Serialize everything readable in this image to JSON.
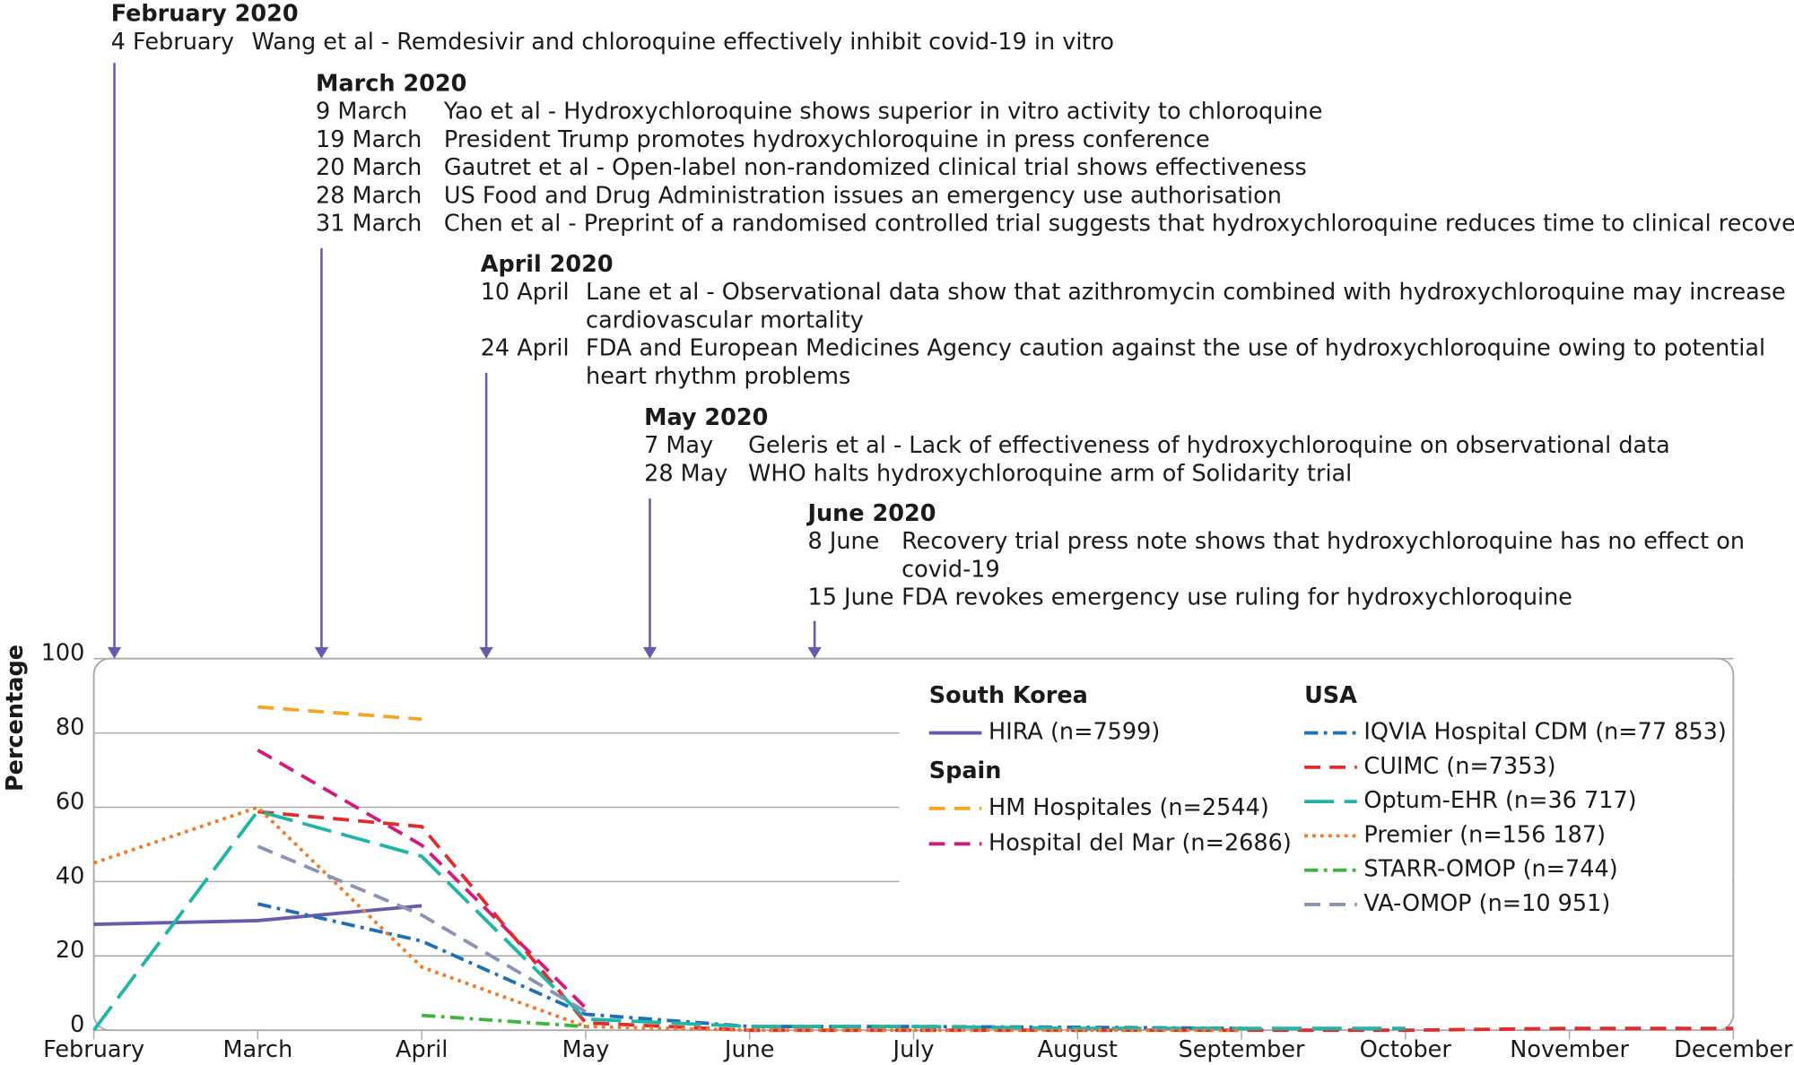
{
  "chart_data": {
    "type": "line",
    "y_label": "Percentage",
    "categories": [
      "February",
      "March",
      "April",
      "May",
      "June",
      "July",
      "August",
      "September",
      "October",
      "November",
      "December"
    ],
    "ylim": [
      0,
      100
    ],
    "yticks": [
      0,
      20,
      40,
      60,
      80,
      100
    ],
    "grid": true,
    "series": [
      {
        "country": "South Korea",
        "name": "HIRA (n=7599)",
        "color": "#6a5aad",
        "linestyle": "solid",
        "values": [
          28.5,
          29.5,
          33.5,
          null,
          null,
          null,
          null,
          null,
          null,
          null,
          null
        ]
      },
      {
        "country": "Spain",
        "name": "HM Hospitales (n=2544)",
        "color": "#f5a623",
        "linestyle": "dashed",
        "values": [
          null,
          87,
          83.7,
          null,
          null,
          null,
          null,
          null,
          null,
          null,
          null
        ]
      },
      {
        "country": "Spain",
        "name": "Hospital del Mar (n=2686)",
        "color": "#d6197d",
        "linestyle": "dashed",
        "values": [
          null,
          75.4,
          49.8,
          6,
          null,
          null,
          null,
          null,
          null,
          null,
          null
        ]
      },
      {
        "country": "USA",
        "name": "IQVIA Hospital CDM (n=77 853)",
        "color": "#1f6fb5",
        "linestyle": "dashdot",
        "values": [
          null,
          34,
          24,
          4.3,
          1,
          1,
          0.8,
          0.5,
          null,
          null,
          null
        ]
      },
      {
        "country": "USA",
        "name": "CUIMC (n=7353)",
        "color": "#e32b2b",
        "linestyle": "dashed",
        "values": [
          null,
          58.8,
          54.8,
          2,
          0,
          0,
          0,
          0,
          0,
          0.5,
          0.5
        ]
      },
      {
        "country": "USA",
        "name": "Optum-EHR (n=36 717)",
        "color": "#1fb5a8",
        "linestyle": "longdash",
        "values": [
          0,
          59,
          46.8,
          3,
          1,
          1,
          0.5,
          0.5,
          0.5,
          null,
          null
        ]
      },
      {
        "country": "USA",
        "name": "Premier (n=156 187)",
        "color": "#f07b2a",
        "linestyle": "dotted",
        "values": [
          45,
          60,
          17,
          1,
          0,
          0,
          0,
          0,
          null,
          null,
          null
        ]
      },
      {
        "country": "USA",
        "name": "STARR-OMOP (n=744)",
        "color": "#3fb53f",
        "linestyle": "dashdot",
        "values": [
          null,
          null,
          4,
          1,
          null,
          null,
          null,
          null,
          null,
          null,
          null
        ]
      },
      {
        "country": "USA",
        "name": "VA-OMOP (n=10 951)",
        "color": "#8a93b5",
        "linestyle": "dashed",
        "values": [
          null,
          49.5,
          31,
          5,
          null,
          null,
          null,
          null,
          null,
          null,
          null
        ]
      }
    ],
    "annotations": [
      {
        "heading": "February 2020",
        "items": [
          {
            "date": "4 February",
            "text": [
              "Wang et al - Remdesivir and chloroquine effectively inhibit covid-19 in vitro"
            ]
          }
        ]
      },
      {
        "heading": "March 2020",
        "items": [
          {
            "date": "9 March",
            "text": [
              "Yao et al - Hydroxychloroquine shows superior in vitro activity to chloroquine"
            ]
          },
          {
            "date": "19 March",
            "text": [
              "President Trump promotes hydroxychloroquine in press conference"
            ]
          },
          {
            "date": "20 March",
            "text": [
              "Gautret et al - Open-label non-randomized clinical trial shows effectiveness"
            ]
          },
          {
            "date": "28 March",
            "text": [
              "US Food and Drug Administration issues an emergency use authorisation"
            ]
          },
          {
            "date": "31 March",
            "text": [
              "Chen et al - Preprint of a randomised controlled trial suggests that hydroxychloroquine reduces time to clinical recovery"
            ]
          }
        ]
      },
      {
        "heading": "April 2020",
        "items": [
          {
            "date": "10 April",
            "text": [
              "Lane et al - Observational data show that azithromycin combined with hydroxychloroquine may increase",
              "cardiovascular mortality"
            ]
          },
          {
            "date": "24 April",
            "text": [
              "FDA and European Medicines Agency caution against the use of hydroxychloroquine owing to potential",
              "heart rhythm problems"
            ]
          }
        ]
      },
      {
        "heading": "May 2020",
        "items": [
          {
            "date": "7 May",
            "text": [
              "Geleris et al - Lack of effectiveness of hydroxychloroquine on observational data"
            ]
          },
          {
            "date": "28 May",
            "text": [
              "WHO halts hydroxychloroquine arm of Solidarity trial"
            ]
          }
        ]
      },
      {
        "heading": "June 2020",
        "items": [
          {
            "date": "8 June",
            "text": [
              "Recovery trial press note shows that hydroxychloroquine has no effect on",
              "covid-19"
            ]
          },
          {
            "date": "15 June",
            "text": [
              "FDA revokes emergency use ruling for hydroxychloroquine"
            ]
          }
        ]
      }
    ]
  }
}
